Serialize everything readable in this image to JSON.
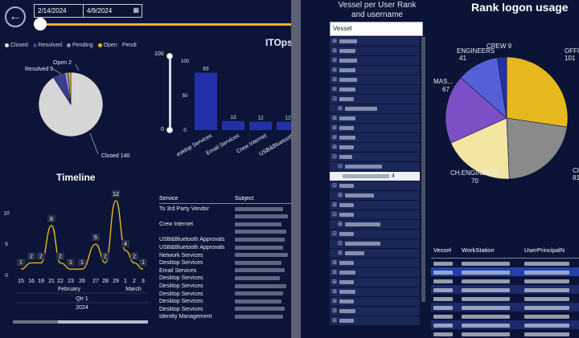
{
  "header": {
    "back_label": "←",
    "date_start": "2/14/2024",
    "date_end": "4/9/2024",
    "calendar_icon": "calendar-icon"
  },
  "legend": {
    "items": [
      {
        "label": "Closed",
        "color": "#e6e6e6"
      },
      {
        "label": "Resolved",
        "color": "#3b3f8c"
      },
      {
        "label": "Pending",
        "color": "#8a8fc0"
      },
      {
        "label": "Open",
        "color": "#e6b81e"
      },
      {
        "label": "Pendi",
        "color": "#0c1538"
      }
    ]
  },
  "status_pie": {
    "labels": {
      "open": "Open 2",
      "resolved": "Resolved 9",
      "closed": "Closed 140"
    }
  },
  "it_chart": {
    "title": "ITOps",
    "y_slider_top": "100",
    "y_slider_bottom": "0"
  },
  "timeline": {
    "title": "Timeline",
    "x_labels": [
      "15",
      "16",
      "19",
      "21",
      "22",
      "23",
      "26",
      "27",
      "28",
      "29",
      "1",
      "2",
      "3"
    ],
    "month_left": "February",
    "month_right": "March",
    "quarter": "Qtr 1",
    "year": "2024",
    "y_ticks": [
      "10",
      "5",
      "0"
    ]
  },
  "service_table": {
    "col_service": "Service",
    "col_subject": "Subject",
    "rows": [
      "To 3rd Party Vendor",
      "",
      "Crew Internet",
      "",
      "USB&Bluetooth Approvals",
      "USB&Bluetooth Approvals",
      "Network Services",
      "Desktop Services",
      "Email Services",
      "Desktop Services",
      "Desktop Services",
      "Desktop Services",
      "Desktop Services",
      "Desktop Services",
      "Identity Management"
    ]
  },
  "slicer": {
    "title_line1": "Vessel per User Rank",
    "title_line2": "and username",
    "header": "Vessel",
    "expand_icon": "expand-icon",
    "collapse_icon": "collapse-icon",
    "selected_suffix": "4"
  },
  "rank_chart": {
    "title": "Rank logon usage",
    "labels": {
      "crew": "CREW 9",
      "engineers": "ENGINEERS",
      "engineers_val": "41",
      "mas": "MAS...",
      "mas_val": "67",
      "ch_engineers": "CH.ENGINEERS",
      "ch_engineers_val": "70",
      "ch_o": "CH.O",
      "ch_o_val": "81",
      "offi": "OFFI",
      "offi_val": "101"
    }
  },
  "user_table": {
    "col_vessel": "Vessel",
    "col_workstation": "WorkStation",
    "col_upn": "UserPrincipalN"
  },
  "chart_data": [
    {
      "type": "pie",
      "title": "",
      "categories": [
        "Closed",
        "Resolved",
        "Pending",
        "Open"
      ],
      "values": [
        140,
        9,
        3,
        2
      ],
      "colors": [
        "#d6d6d6",
        "#3b3f8c",
        "#8a8fc0",
        "#e6b81e"
      ]
    },
    {
      "type": "bar",
      "title": "ITOps",
      "categories": [
        "Desktop Services",
        "Email Services",
        "Crew Internet",
        "USB&Bluetooth"
      ],
      "values": [
        83,
        13,
        12,
        12
      ],
      "ylim": [
        0,
        100
      ],
      "y_ticks": [
        0,
        50,
        100
      ],
      "color": "#2430a8"
    },
    {
      "type": "line",
      "title": "Timeline",
      "categories": [
        "15",
        "16",
        "19",
        "21",
        "22",
        "23",
        "26",
        "27",
        "28",
        "29",
        "1",
        "2",
        "3"
      ],
      "values": [
        1,
        2,
        2,
        8,
        2,
        1,
        1,
        5,
        2,
        12,
        4,
        2,
        1
      ],
      "ylim": [
        0,
        13
      ],
      "y_ticks": [
        0,
        5,
        10
      ],
      "color": "#e6b81e"
    },
    {
      "type": "pie",
      "title": "Rank logon usage",
      "categories": [
        "OFFI",
        "CH.O",
        "CH.ENGINEERS",
        "MAS...",
        "ENGINEERS",
        "CREW"
      ],
      "values": [
        101,
        81,
        70,
        67,
        41,
        9
      ],
      "colors": [
        "#e6b81e",
        "#8a8a8a",
        "#f3e6a2",
        "#7d4fc6",
        "#5560d6",
        "#2430a8"
      ]
    }
  ]
}
